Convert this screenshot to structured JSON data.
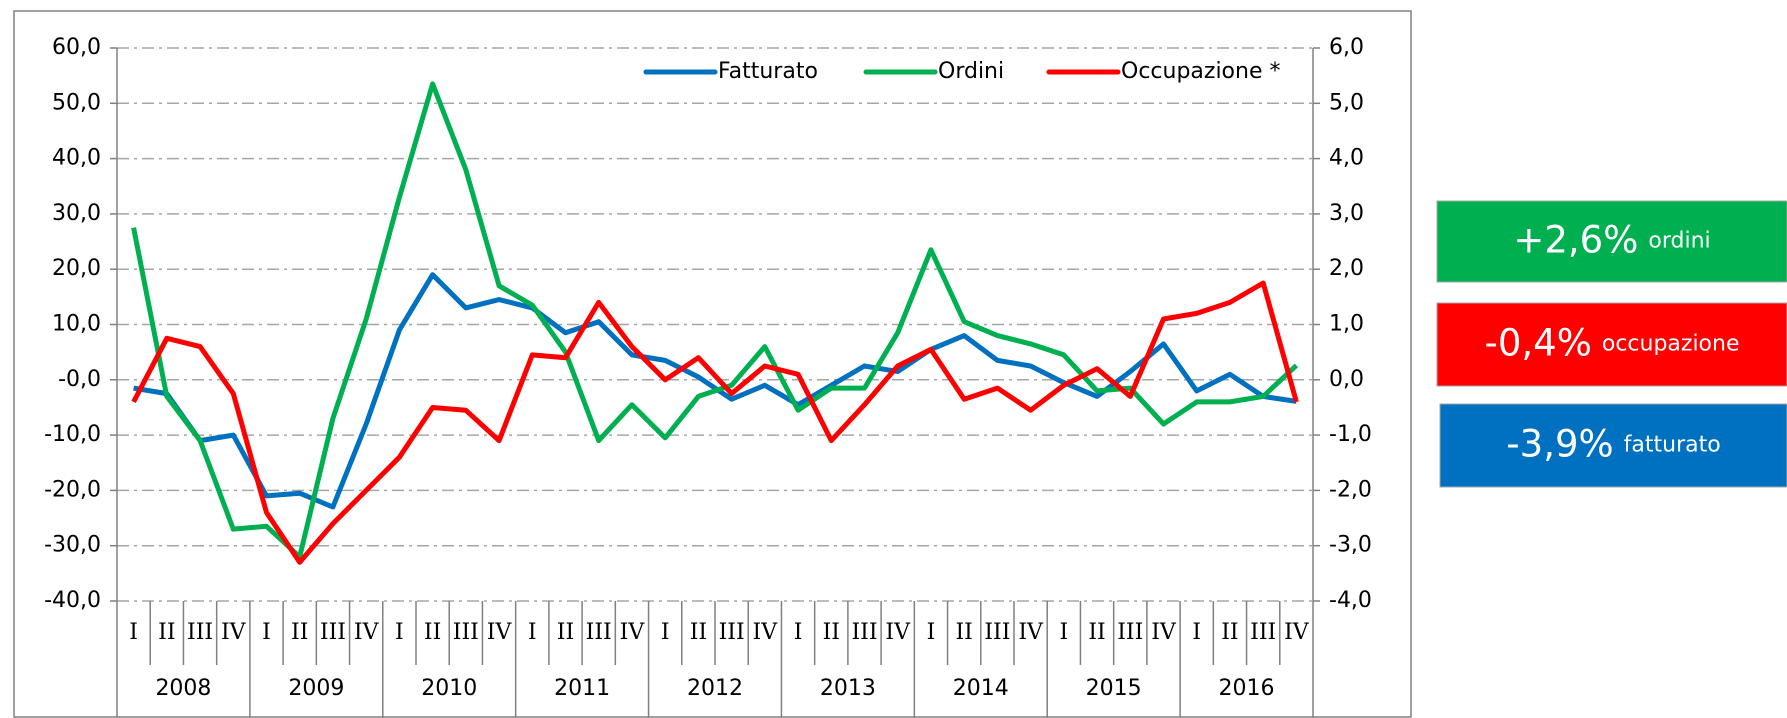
{
  "chart_data": {
    "type": "line",
    "categories": [
      "I",
      "II",
      "III",
      "IV",
      "I",
      "II",
      "III",
      "IV",
      "I",
      "II",
      "III",
      "IV",
      "I",
      "II",
      "III",
      "IV",
      "I",
      "II",
      "III",
      "IV",
      "I",
      "II",
      "III",
      "IV",
      "I",
      "II",
      "III",
      "IV",
      "I",
      "II",
      "III",
      "IV",
      "I",
      "II",
      "III",
      "IV"
    ],
    "years": [
      "2008",
      "2009",
      "2010",
      "2011",
      "2012",
      "2013",
      "2014",
      "2015",
      "2016"
    ],
    "series": [
      {
        "name": "Fatturato",
        "color": "#0070c0",
        "values": [
          -1.5,
          -2.5,
          -11,
          -10,
          -21,
          -20.5,
          -23,
          -8,
          9,
          19,
          13,
          14.5,
          13,
          8.5,
          10.5,
          4.5,
          3.5,
          0.5,
          -3.5,
          -1,
          -4.5,
          -1,
          2.5,
          1.5,
          5.5,
          8,
          3.5,
          2.5,
          -0.5,
          -3,
          1.5,
          6.5,
          -2,
          1,
          -3,
          -3.9
        ]
      },
      {
        "name": "Ordini",
        "color": "#00b050",
        "values": [
          27.5,
          -3,
          -11,
          -27,
          -26.5,
          -32,
          -7,
          11,
          33,
          53.5,
          38,
          17,
          13.5,
          5,
          -11,
          -4.5,
          -10.5,
          -3,
          -1,
          6,
          -5.5,
          -1.5,
          -1.5,
          8.5,
          23.5,
          10.5,
          8,
          6.5,
          4.5,
          -2,
          -1.5,
          -8,
          -4,
          -4,
          -3,
          2.6
        ]
      },
      {
        "name": "Occupazione *",
        "color": "#ff0000",
        "axis": "y2",
        "values": [
          -0.4,
          0.75,
          0.6,
          -0.25,
          -2.4,
          -3.3,
          -2.6,
          -2.0,
          -1.4,
          -0.5,
          -0.55,
          -1.1,
          0.45,
          0.4,
          1.4,
          0.6,
          0.0,
          0.4,
          -0.25,
          0.25,
          0.1,
          -1.1,
          -0.45,
          0.25,
          0.55,
          -0.35,
          -0.15,
          -0.55,
          -0.1,
          0.2,
          -0.3,
          1.1,
          1.2,
          1.4,
          1.75,
          -0.4
        ]
      }
    ],
    "ylim": [
      -40,
      60
    ],
    "yticks": [
      {
        "value": -40,
        "label": "-40,0"
      },
      {
        "value": -30,
        "label": "-30,0"
      },
      {
        "value": -20,
        "label": "-20,0"
      },
      {
        "value": -10,
        "label": "-10,0"
      },
      {
        "value": 0,
        "label": "-0,0"
      },
      {
        "value": 10,
        "label": "10,0"
      },
      {
        "value": 20,
        "label": "20,0"
      },
      {
        "value": 30,
        "label": "30,0"
      },
      {
        "value": 40,
        "label": "40,0"
      },
      {
        "value": 50,
        "label": "50,0"
      },
      {
        "value": 60,
        "label": "60,0"
      }
    ],
    "y2lim": [
      -4,
      6
    ],
    "y2ticks": [
      {
        "value": -4,
        "label": "-4,0"
      },
      {
        "value": -3,
        "label": "-3,0"
      },
      {
        "value": -2,
        "label": "-2,0"
      },
      {
        "value": -1,
        "label": "-1,0"
      },
      {
        "value": 0,
        "label": "0,0"
      },
      {
        "value": 1,
        "label": "1,0"
      },
      {
        "value": 2,
        "label": "2,0"
      },
      {
        "value": 3,
        "label": "3,0"
      },
      {
        "value": 4,
        "label": "4,0"
      },
      {
        "value": 5,
        "label": "5,0"
      },
      {
        "value": 6,
        "label": "6,0"
      }
    ],
    "grid": true,
    "legend": "top-right",
    "annotations": [
      {
        "value": "+2,6%",
        "label": "ordini",
        "color": "#00b050"
      },
      {
        "value": "-0,4%",
        "label": "occupazione",
        "color": "#ff0000"
      },
      {
        "value": "-3,9%",
        "label": "fatturato",
        "color": "#0070c0"
      }
    ]
  }
}
